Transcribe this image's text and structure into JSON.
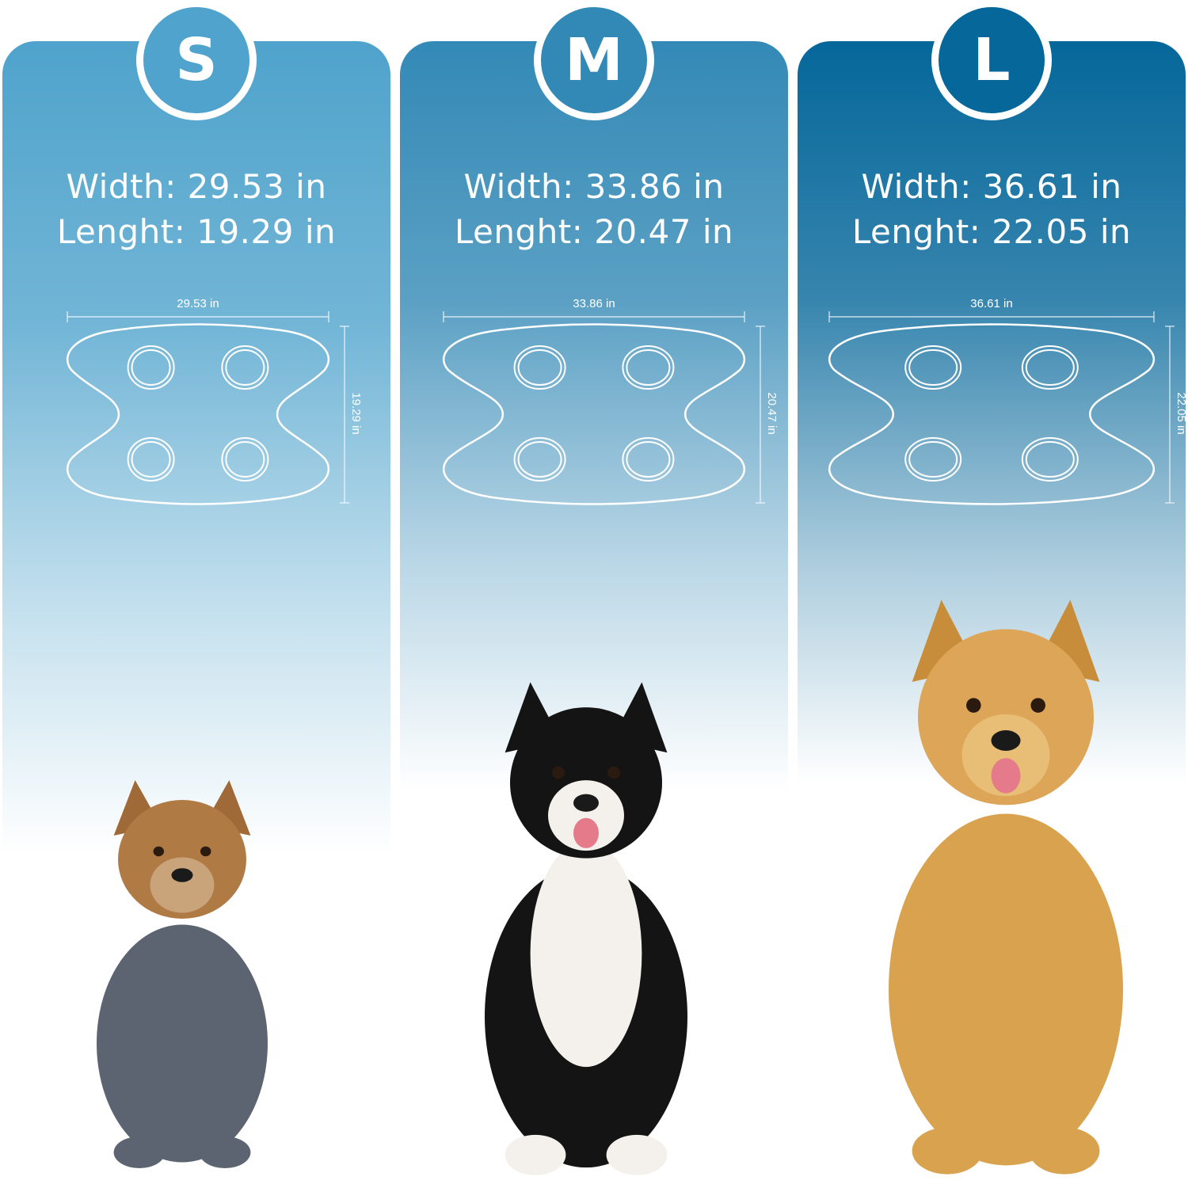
{
  "sizes": [
    {
      "label": "S",
      "width_text": "Width: 29.53 in",
      "length_text": "Lenght: 19.29 in",
      "width_dim": "29.53 in",
      "length_dim": "19.29 in",
      "color": "#4fa3cc",
      "dog": "yorkshire-terrier"
    },
    {
      "label": "M",
      "width_text": "Width: 33.86 in",
      "length_text": "Lenght: 20.47 in",
      "width_dim": "33.86 in",
      "length_dim": "20.47 in",
      "color": "#3389b6",
      "dog": "border-collie"
    },
    {
      "label": "L",
      "width_text": "Width: 36.61 in",
      "length_text": "Lenght: 22.05 in",
      "width_dim": "36.61 in",
      "length_dim": "22.05 in",
      "color": "#05679a",
      "dog": "golden-retriever"
    }
  ]
}
